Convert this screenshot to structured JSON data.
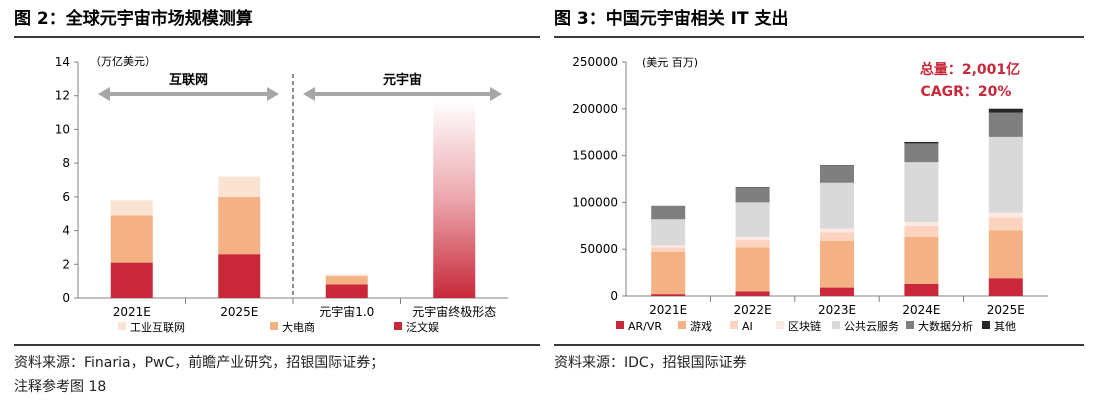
{
  "left_panel": {
    "title": "图 2：全球元宇宙市场规模测算",
    "source": "资料来源：Finaria，PwC，前瞻产业研究，招银国际证券；",
    "note": "注释参考图 18"
  },
  "right_panel": {
    "title": "图 3：中国元宇宙相关 IT 支出",
    "source": "资料来源：IDC，招银国际证券"
  },
  "colors": {
    "industrial": "#fbe3d4",
    "ecommerce": "#f4b183",
    "entertainment": "#c8283a",
    "arvr": "#c8283a",
    "game": "#f4b183",
    "ai": "#fbd3be",
    "blockchain": "#fde9e4",
    "cloud": "#d9d9d9",
    "bigdata": "#7f7f7f",
    "other": "#262626"
  },
  "chart_data": [
    {
      "type": "bar",
      "stacked": true,
      "unit_label": "（万亿美元）",
      "categories": [
        "2021E",
        "2025E",
        "元宇宙1.0",
        "元宇宙终极形态"
      ],
      "series": [
        {
          "name": "泛文娱",
          "values": [
            2.1,
            2.6,
            0.8,
            null
          ]
        },
        {
          "name": "大电商",
          "values": [
            2.8,
            3.4,
            0.5,
            null
          ]
        },
        {
          "name": "工业互联网",
          "values": [
            0.9,
            1.2,
            0.1,
            null
          ]
        }
      ],
      "gradient_bar": {
        "category": "元宇宙终极形态",
        "top": 11.7
      },
      "group_labels": [
        "互联网",
        "元宇宙"
      ],
      "ylim": [
        0,
        14
      ],
      "yticks": [
        0,
        2,
        4,
        6,
        8,
        10,
        12,
        14
      ],
      "legend": [
        "工业互联网",
        "大电商",
        "泛文娱"
      ],
      "legend_position": "bottom"
    },
    {
      "type": "bar",
      "stacked": true,
      "unit_label": "(美元 百万)",
      "annotation": [
        "总量：2,001亿",
        "CAGR：20%"
      ],
      "categories": [
        "2021E",
        "2022E",
        "2023E",
        "2024E",
        "2025E"
      ],
      "series": [
        {
          "name": "AR/VR",
          "values": [
            2000,
            5000,
            9000,
            13000,
            19000
          ]
        },
        {
          "name": "游戏",
          "values": [
            45000,
            47000,
            50000,
            50000,
            51000
          ]
        },
        {
          "name": "AI",
          "values": [
            5000,
            8000,
            9000,
            12000,
            14000
          ]
        },
        {
          "name": "区块链",
          "values": [
            2000,
            3000,
            4000,
            4000,
            5000
          ]
        },
        {
          "name": "公共云服务",
          "values": [
            28000,
            37000,
            49000,
            64000,
            81000
          ]
        },
        {
          "name": "大数据分析",
          "values": [
            14000,
            16000,
            18000,
            20000,
            26000
          ]
        },
        {
          "name": "其他",
          "values": [
            300,
            400,
            700,
            1600,
            4100
          ]
        }
      ],
      "ylim": [
        0,
        250000
      ],
      "yticks": [
        0,
        50000,
        100000,
        150000,
        200000,
        250000
      ],
      "legend": [
        "AR/VR",
        "游戏",
        "AI",
        "区块链",
        "公共云服务",
        "大数据分析",
        "其他"
      ],
      "legend_position": "bottom"
    }
  ]
}
